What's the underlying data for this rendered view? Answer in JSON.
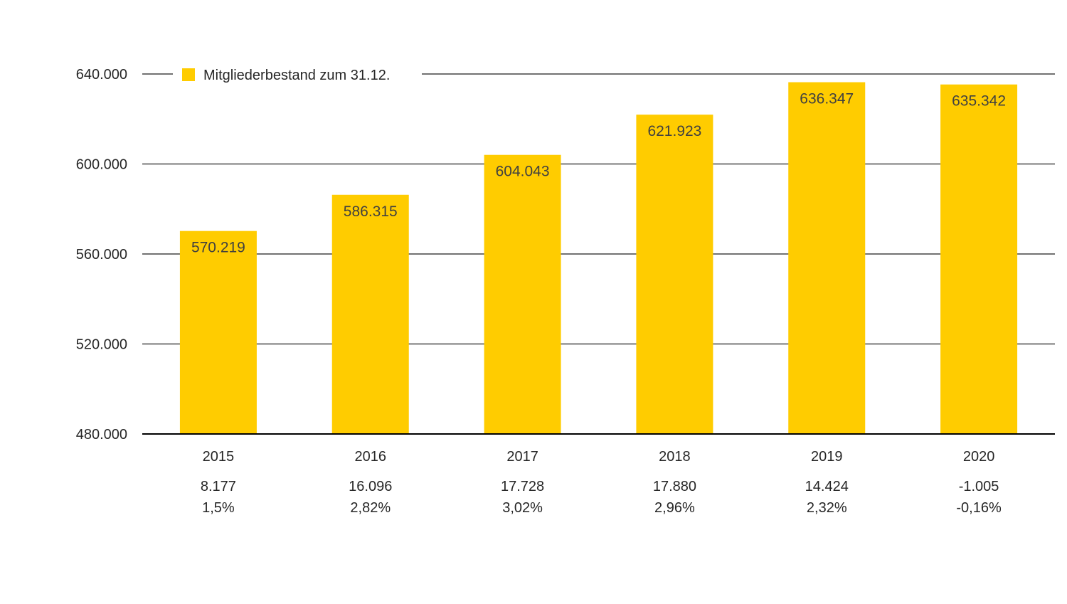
{
  "chart_data": {
    "type": "bar",
    "categories": [
      "2015",
      "2016",
      "2017",
      "2018",
      "2019",
      "2020"
    ],
    "series": [
      {
        "name": "Mitgliederbestand zum 31.12.",
        "values": [
          570219,
          586315,
          604043,
          621923,
          636347,
          635342
        ],
        "color": "#FFCC00"
      }
    ],
    "data_labels": [
      "570.219",
      "586.315",
      "604.043",
      "621.923",
      "636.347",
      "635.342"
    ],
    "ylim": [
      480000,
      640000
    ],
    "y_ticks": [
      480000,
      520000,
      560000,
      600000,
      640000
    ],
    "y_tick_labels": [
      "480.000",
      "520.000",
      "560.000",
      "600.000",
      "640.000"
    ],
    "grid": true,
    "legend_position": "top-left",
    "change_absolute": [
      "8.177",
      "16.096",
      "17.728",
      "17.880",
      "14.424",
      "-1.005"
    ],
    "change_percent": [
      "1,5%",
      "2,82%",
      "3,02%",
      "2,96%",
      "2,32%",
      "-0,16%"
    ],
    "title": "",
    "xlabel": "",
    "ylabel": ""
  }
}
